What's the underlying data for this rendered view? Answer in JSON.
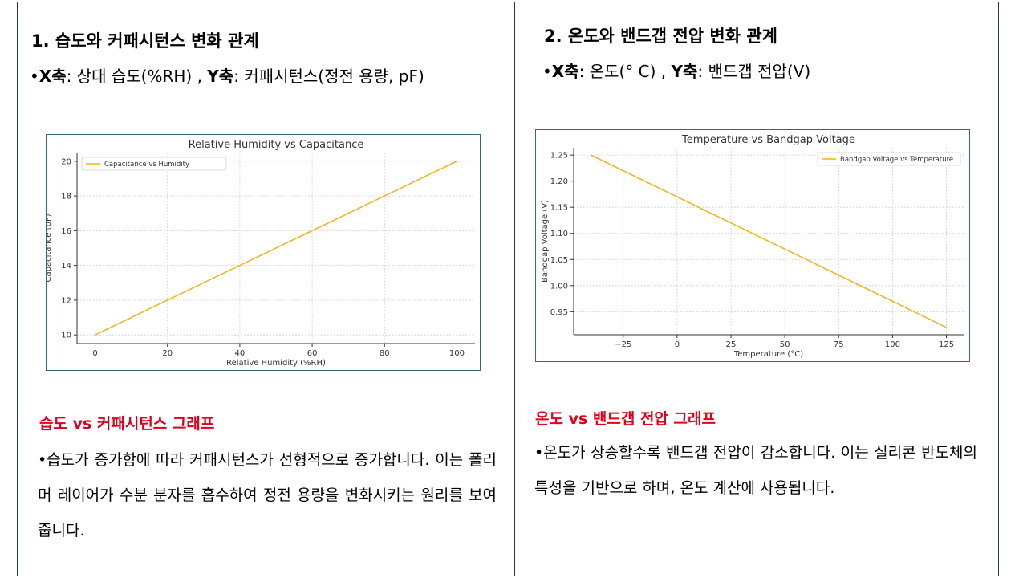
{
  "panels": [
    {
      "heading": "1. 습도와 커패시턴스 변화 관계",
      "axes_line": {
        "bullet": "•",
        "x_key": "X축",
        "x_desc": ": 상대 습도(%RH) , ",
        "y_key": "Y축",
        "y_desc": ": 커패시턴스(정전 용량, pF)"
      },
      "graph_title": "습도 vs 커패시턴스 그래프",
      "description": "•습도가 증가함에 따라 커패시턴스가 선형적으로 증가합니다. 이는 폴리머 레이어가 수분 분자를 흡수하여 정전 용량을 변화시키는 원리를 보여줍니다."
    },
    {
      "heading": "2. 온도와 밴드갭 전압 변화 관계",
      "axes_line": {
        "bullet": "•",
        "x_key": "X축",
        "x_desc": ": 온도(° C) , ",
        "y_key": "Y축",
        "y_desc": ": 밴드갭 전압(V)"
      },
      "graph_title": "온도 vs 밴드갭 전압 그래프",
      "description": "•온도가 상승할수록 밴드갭 전압이 감소합니다. 이는 실리콘 반도체의 특성을 기반으로 하며, 온도 계산에 사용됩니다."
    }
  ],
  "chart_data": [
    {
      "type": "line",
      "title": "Relative Humidity vs Capacitance",
      "xlabel": "Relative Humidity (%RH)",
      "ylabel": "Capacitance (pF)",
      "xlim": [
        -5,
        105
      ],
      "ylim": [
        9.5,
        20.5
      ],
      "xticks": [
        0,
        20,
        40,
        60,
        80,
        100
      ],
      "yticks": [
        10,
        12,
        14,
        16,
        18,
        20
      ],
      "grid": true,
      "legend_position": "top-left",
      "series": [
        {
          "name": "Capacitance vs Humidity",
          "color": "#f0b21a",
          "x": [
            0,
            100
          ],
          "y": [
            10,
            20
          ]
        }
      ]
    },
    {
      "type": "line",
      "title": "Temperature vs Bandgap Voltage",
      "xlabel": "Temperature (°C)",
      "ylabel": "Bandgap Voltage (V)",
      "xlim": [
        -48,
        133
      ],
      "ylim": [
        0.906,
        1.264
      ],
      "xticks": [
        -25,
        0,
        25,
        50,
        75,
        100,
        125
      ],
      "xtick_labels": [
        "−25",
        "0",
        "25",
        "50",
        "75",
        "100",
        "125"
      ],
      "yticks": [
        0.95,
        1.0,
        1.05,
        1.1,
        1.15,
        1.2,
        1.25
      ],
      "ytick_labels": [
        "0.95",
        "1.00",
        "1.05",
        "1.10",
        "1.15",
        "1.20",
        "1.25"
      ],
      "grid": true,
      "legend_position": "top-right",
      "series": [
        {
          "name": "Bandgap Voltage vs Temperature",
          "color": "#f0b21a",
          "x": [
            -40,
            125
          ],
          "y": [
            1.25,
            0.92
          ]
        }
      ]
    }
  ]
}
